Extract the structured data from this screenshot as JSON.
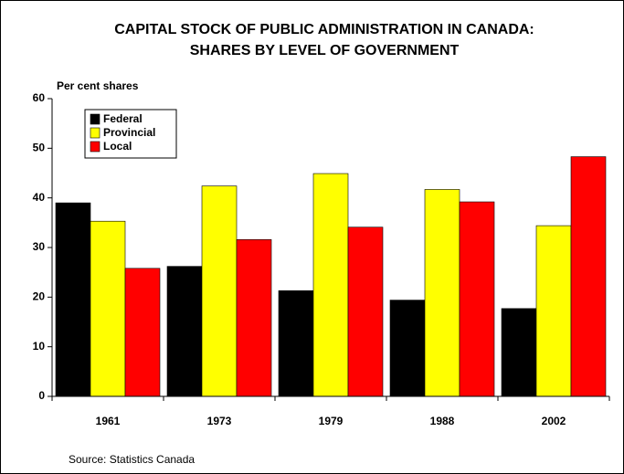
{
  "chart_data": {
    "type": "bar",
    "title": [
      "CAPITAL STOCK OF PUBLIC ADMINISTRATION IN CANADA:",
      "SHARES BY LEVEL OF GOVERNMENT"
    ],
    "ylabel": "Per cent shares",
    "source": "Source: Statistics Canada",
    "categories": [
      "1961",
      "1973",
      "1979",
      "1988",
      "2002"
    ],
    "series": [
      {
        "name": "Federal",
        "color": "#000000",
        "values": [
          39.0,
          26.2,
          21.3,
          19.4,
          17.7
        ]
      },
      {
        "name": "Provincial",
        "color": "#ffff00",
        "values": [
          35.3,
          42.4,
          44.9,
          41.7,
          34.4
        ]
      },
      {
        "name": "Local",
        "color": "#ff0000",
        "values": [
          25.8,
          31.6,
          34.1,
          39.2,
          48.3
        ]
      }
    ],
    "ylim": [
      0,
      60
    ],
    "yticks": [
      0,
      10,
      20,
      30,
      40,
      50,
      60
    ],
    "grid": false,
    "legend": "upper left"
  }
}
